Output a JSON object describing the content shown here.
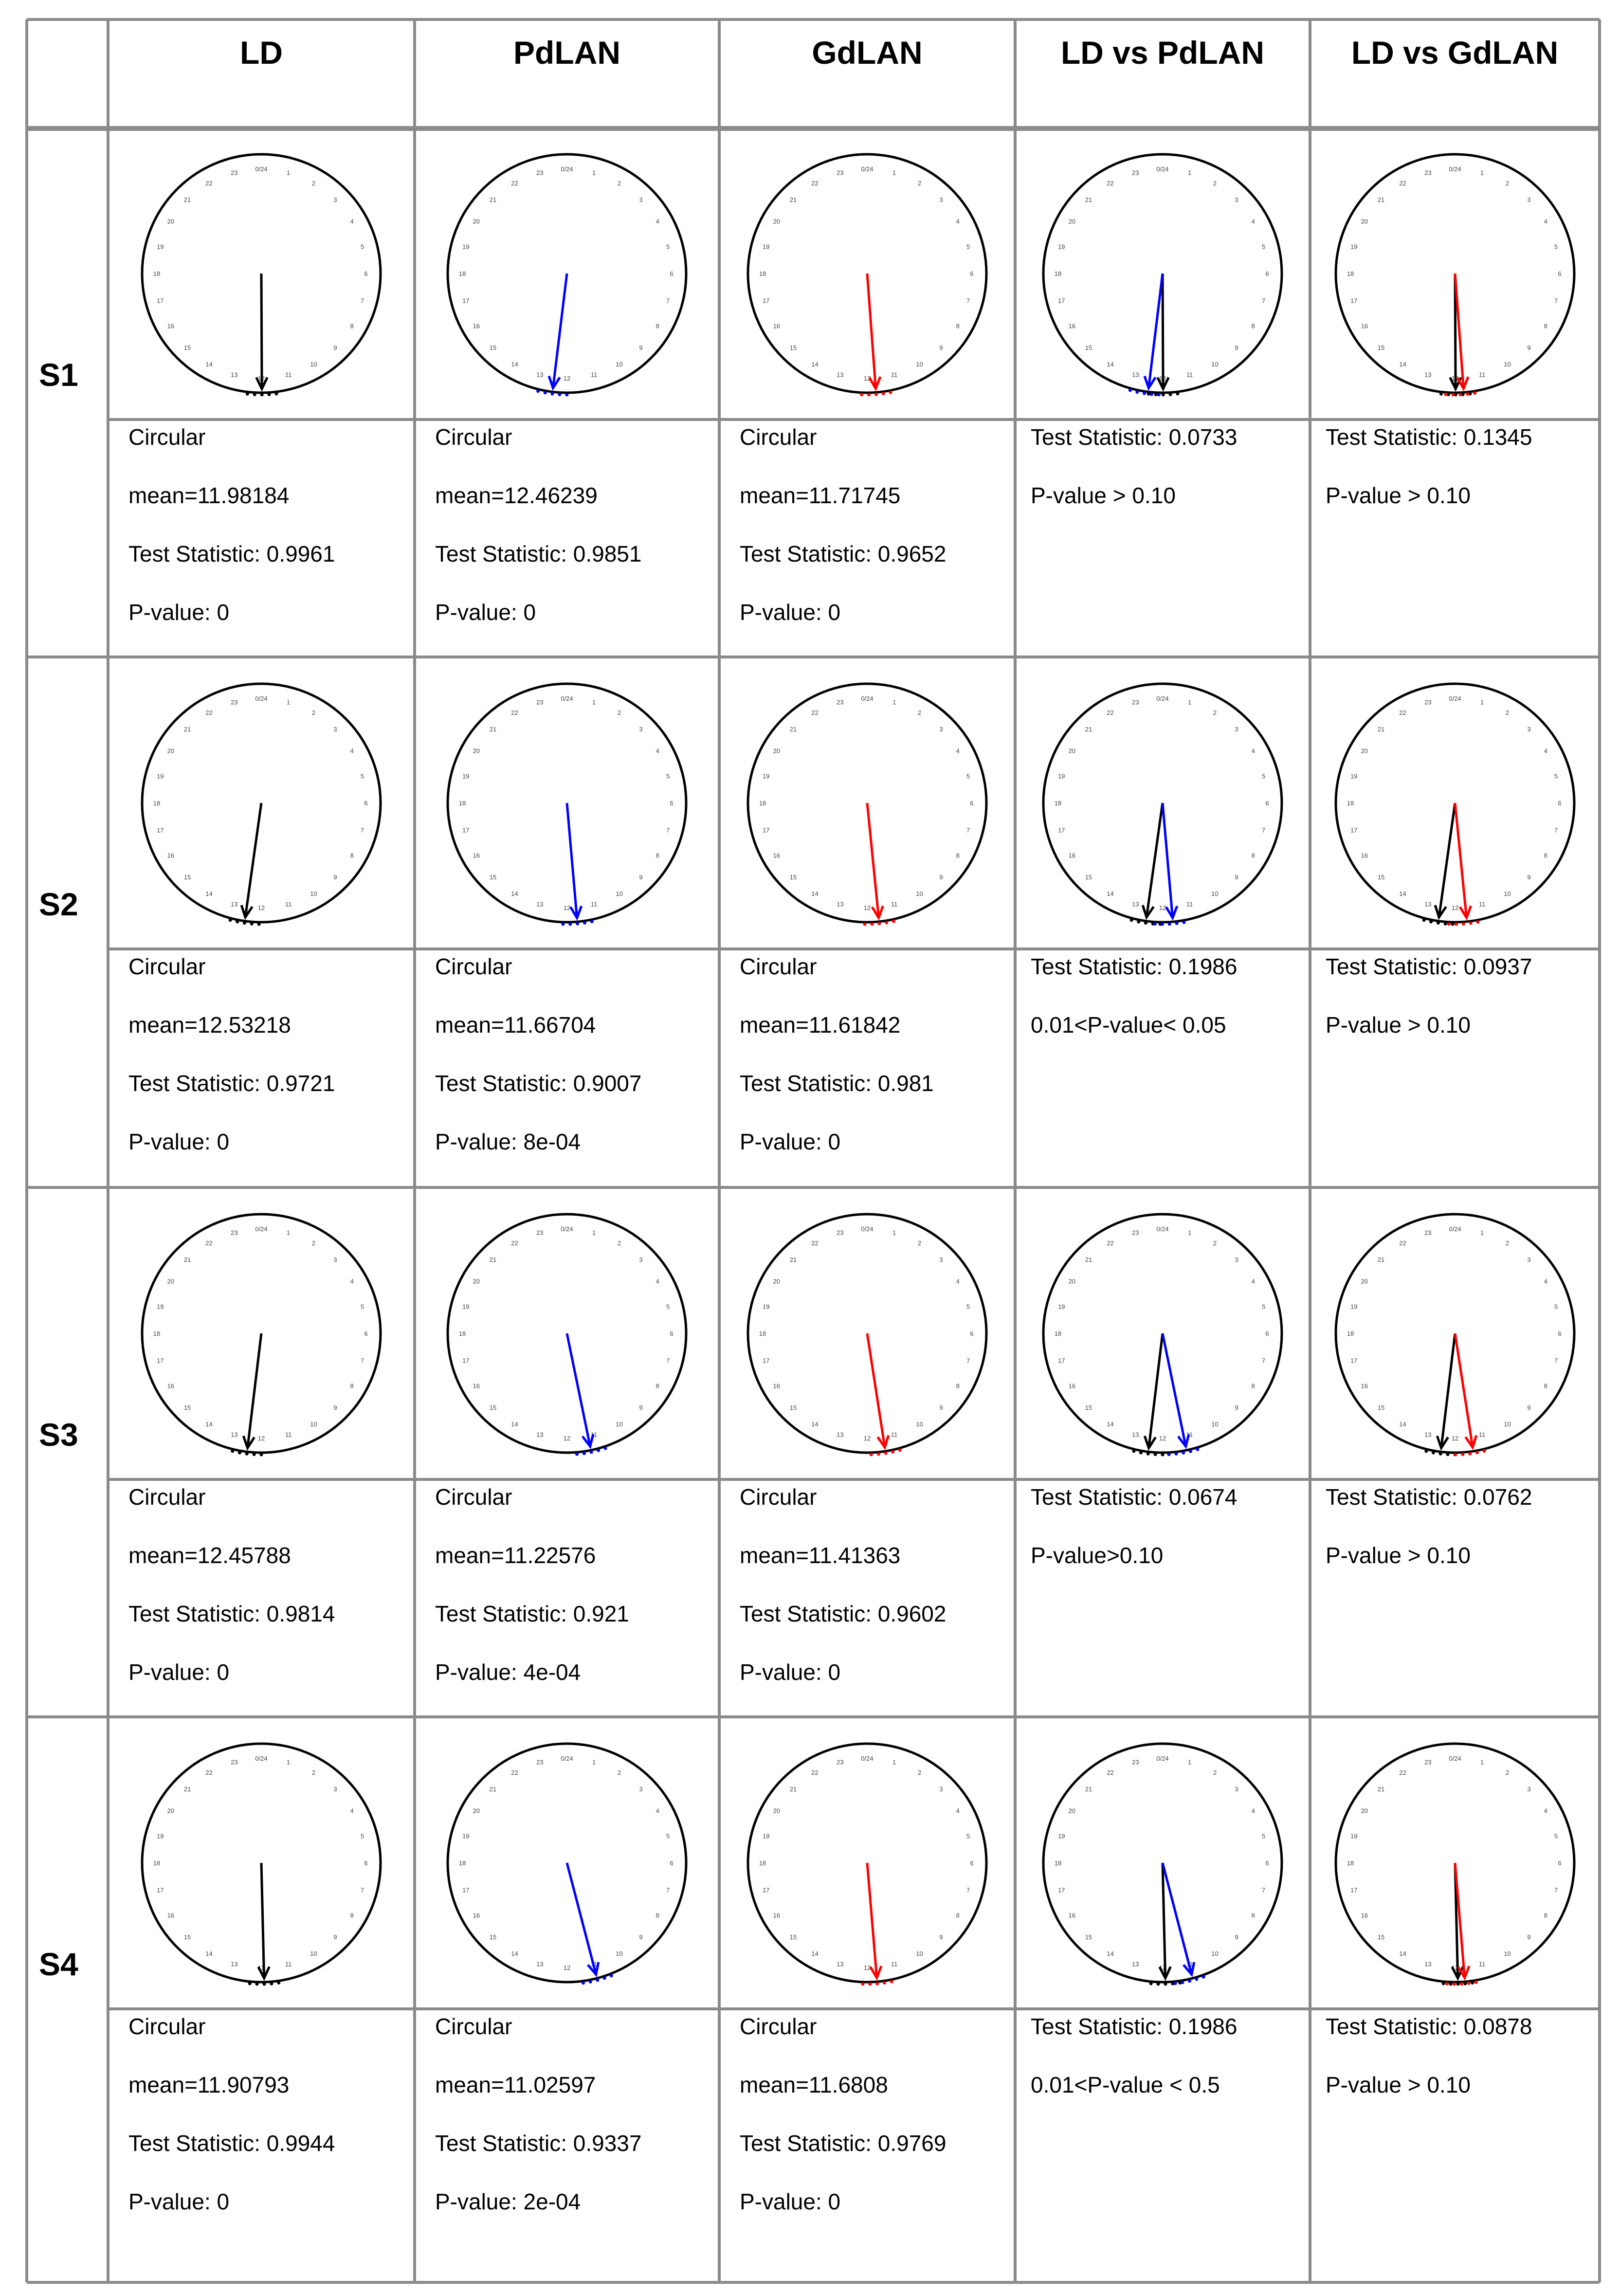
{
  "columns": [
    "",
    "LD",
    "PdLAN",
    "GdLAN",
    "LD vs PdLAN",
    "LD vs GdLAN"
  ],
  "colors": {
    "LD": "#000000",
    "PdLAN": "#0000ff",
    "GdLAN": "#ff0000",
    "grid": "#8a8a8a"
  },
  "dial_labels": [
    "0/24",
    "1",
    "2",
    "3",
    "4",
    "5",
    "6",
    "7",
    "8",
    "9",
    "10",
    "11",
    "12",
    "13",
    "14",
    "15",
    "16",
    "17",
    "18",
    "19",
    "20",
    "21",
    "22",
    "23"
  ],
  "rows": [
    {
      "label": "S1",
      "cells": [
        {
          "lines": [
            "Circular",
            "mean=11.98184",
            "Test Statistic:  0.9961",
            "P-value:  0"
          ],
          "hours": [
            11.98184
          ],
          "series": [
            "LD"
          ]
        },
        {
          "lines": [
            "Circular",
            "mean=12.46239",
            "Test Statistic:  0.9851",
            "P-value:  0"
          ],
          "hours": [
            12.46239
          ],
          "series": [
            "PdLAN"
          ]
        },
        {
          "lines": [
            "Circular",
            "mean=11.71745",
            "Test Statistic:  0.9652",
            "P-value:  0"
          ],
          "hours": [
            11.71745
          ],
          "series": [
            "GdLAN"
          ]
        },
        {
          "lines": [
            "Test Statistic: 0.0733",
            "P-value > 0.10"
          ],
          "hours": [
            11.98184,
            12.46239
          ],
          "series": [
            "LD",
            "PdLAN"
          ]
        },
        {
          "lines": [
            "Test Statistic: 0.1345",
            "P-value > 0.10"
          ],
          "hours": [
            11.98184,
            11.71745
          ],
          "series": [
            "LD",
            "GdLAN"
          ]
        }
      ]
    },
    {
      "label": "S2",
      "cells": [
        {
          "lines": [
            "Circular",
            "mean=12.53218",
            "Test Statistic:  0.9721",
            "P-value:  0"
          ],
          "hours": [
            12.53218
          ],
          "series": [
            "LD"
          ]
        },
        {
          "lines": [
            "Circular",
            "mean=11.66704",
            "Test Statistic:  0.9007",
            "P-value:  8e-04"
          ],
          "hours": [
            11.66704
          ],
          "series": [
            "PdLAN"
          ]
        },
        {
          "lines": [
            "Circular",
            "mean=11.61842",
            "Test Statistic:  0.981",
            "P-value:  0"
          ],
          "hours": [
            11.61842
          ],
          "series": [
            "GdLAN"
          ]
        },
        {
          "lines": [
            "Test Statistic: 0.1986",
            "0.01<P-value< 0.05"
          ],
          "hours": [
            12.53218,
            11.66704
          ],
          "series": [
            "LD",
            "PdLAN"
          ]
        },
        {
          "lines": [
            "Test Statistic: 0.0937",
            "P-value > 0.10"
          ],
          "hours": [
            12.53218,
            11.61842
          ],
          "series": [
            "LD",
            "GdLAN"
          ]
        }
      ]
    },
    {
      "label": "S3",
      "cells": [
        {
          "lines": [
            "Circular",
            "mean=12.45788",
            "Test Statistic:  0.9814",
            "P-value:  0"
          ],
          "hours": [
            12.45788
          ],
          "series": [
            "LD"
          ]
        },
        {
          "lines": [
            "Circular",
            "mean=11.22576",
            "Test Statistic:  0.921",
            "P-value:  4e-04"
          ],
          "hours": [
            11.22576
          ],
          "series": [
            "PdLAN"
          ]
        },
        {
          "lines": [
            "Circular",
            "mean=11.41363",
            "Test Statistic:  0.9602",
            "P-value:  0"
          ],
          "hours": [
            11.41363
          ],
          "series": [
            "GdLAN"
          ]
        },
        {
          "lines": [
            "Test Statistic: 0.0674",
            "P-value>0.10"
          ],
          "hours": [
            12.45788,
            11.22576
          ],
          "series": [
            "LD",
            "PdLAN"
          ]
        },
        {
          "lines": [
            "Test Statistic: 0.0762",
            "P-value > 0.10"
          ],
          "hours": [
            12.45788,
            11.41363
          ],
          "series": [
            "LD",
            "GdLAN"
          ]
        }
      ]
    },
    {
      "label": "S4",
      "cells": [
        {
          "lines": [
            "Circular",
            "mean=11.90793",
            "Test Statistic:  0.9944",
            "P-value:  0"
          ],
          "hours": [
            11.90793
          ],
          "series": [
            "LD"
          ]
        },
        {
          "lines": [
            "Circular",
            "mean=11.02597",
            "Test Statistic:  0.9337",
            "P-value:  2e-04"
          ],
          "hours": [
            11.02597
          ],
          "series": [
            "PdLAN"
          ]
        },
        {
          "lines": [
            "Circular",
            "mean=11.6808",
            "Test Statistic:  0.9769",
            "P-value:  0"
          ],
          "hours": [
            11.6808
          ],
          "series": [
            "GdLAN"
          ]
        },
        {
          "lines": [
            "Test Statistic: 0.1986",
            "0.01<P-value < 0.5"
          ],
          "hours": [
            11.90793,
            11.02597
          ],
          "series": [
            "LD",
            "PdLAN"
          ]
        },
        {
          "lines": [
            "Test Statistic: 0.0878",
            "P-value > 0.10"
          ],
          "hours": [
            11.90793,
            11.6808
          ],
          "series": [
            "LD",
            "GdLAN"
          ]
        }
      ]
    }
  ]
}
